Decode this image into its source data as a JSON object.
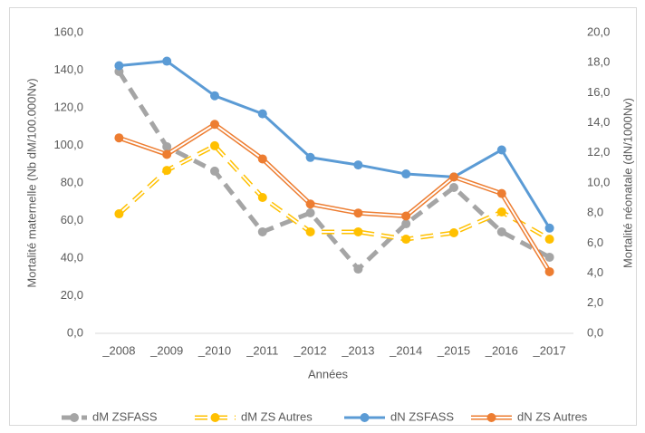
{
  "chart_data": {
    "type": "line",
    "xlabel": "Années",
    "ylabel": "Mortalité maternelle (Nb dM/100.000Nv)",
    "y2label": "Mortalité néonatale (dN/1000Nv)",
    "categories": [
      "_2008",
      "_2009",
      "_2010",
      "_2011",
      "_2012",
      "_2013",
      "_2014",
      "_2015",
      "_2016",
      "_2017"
    ],
    "ylim": [
      0,
      160
    ],
    "yticks": [
      {
        "value": 0,
        "label": "0,0"
      },
      {
        "value": 20,
        "label": "20,0"
      },
      {
        "value": 40,
        "label": "40,0"
      },
      {
        "value": 60,
        "label": "60,0"
      },
      {
        "value": 80,
        "label": "80,0"
      },
      {
        "value": 100,
        "label": "100,0"
      },
      {
        "value": 120,
        "label": "120,0"
      },
      {
        "value": 140,
        "label": "140,0"
      },
      {
        "value": 160,
        "label": "160,0"
      }
    ],
    "y2lim": [
      0,
      20
    ],
    "y2ticks": [
      {
        "value": 0,
        "label": "0,0"
      },
      {
        "value": 2,
        "label": "2,0"
      },
      {
        "value": 4,
        "label": "4,0"
      },
      {
        "value": 6,
        "label": "6,0"
      },
      {
        "value": 8,
        "label": "8,0"
      },
      {
        "value": 10,
        "label": "10,0"
      },
      {
        "value": 12,
        "label": "12,0"
      },
      {
        "value": 14,
        "label": "14,0"
      },
      {
        "value": 16,
        "label": "16,0"
      },
      {
        "value": 18,
        "label": "18,0"
      },
      {
        "value": 20,
        "label": "20,0"
      }
    ],
    "grid": false,
    "legend": "bottom",
    "series": [
      {
        "name": "dM ZSFASS",
        "color": "#a5a5a5",
        "style": "dashed",
        "axis": "y",
        "values": [
          139.3,
          99.3,
          86.3,
          54,
          64.1,
          34.2,
          58.3,
          77.6,
          54,
          40.5
        ]
      },
      {
        "name": "dM ZS Autres",
        "color": "#ffc000",
        "style": "dashed-double",
        "axis": "y",
        "values": [
          63.6,
          86.7,
          99.8,
          72.3,
          54,
          54,
          50.1,
          53.5,
          64.6,
          50.1
        ]
      },
      {
        "name": "dN ZSFASS",
        "color": "#5b9bd5",
        "style": "solid",
        "axis": "y2",
        "values": [
          17.8,
          18.1,
          15.8,
          14.6,
          11.7,
          11.2,
          10.6,
          10.4,
          12.2,
          7.0
        ]
      },
      {
        "name": "dN ZS Autres",
        "color": "#ed7d31",
        "style": "double",
        "axis": "y2",
        "values": [
          13.0,
          11.9,
          13.9,
          11.6,
          8.6,
          8.0,
          7.8,
          10.4,
          9.3,
          4.1
        ]
      }
    ]
  }
}
